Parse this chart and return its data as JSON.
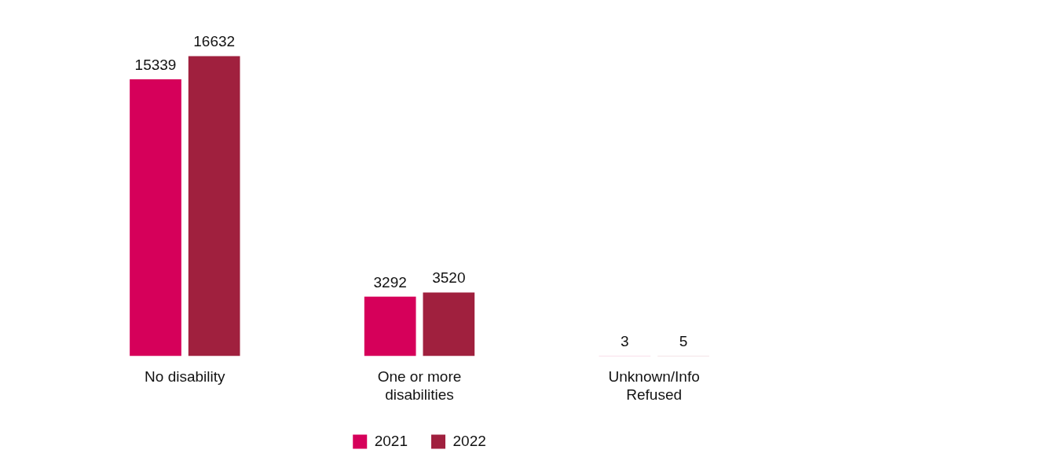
{
  "chart_data": {
    "type": "bar",
    "categories": [
      "No disability",
      "One or more disabilities",
      "Unknown/Info Refused"
    ],
    "series": [
      {
        "name": "2021",
        "color": "#d6005a",
        "values": [
          15339,
          3292,
          3
        ]
      },
      {
        "name": "2022",
        "color": "#a0203e",
        "values": [
          16632,
          3520,
          5
        ]
      }
    ],
    "tick_labels": "x",
    "data_labels": true,
    "legend": "bottom"
  }
}
